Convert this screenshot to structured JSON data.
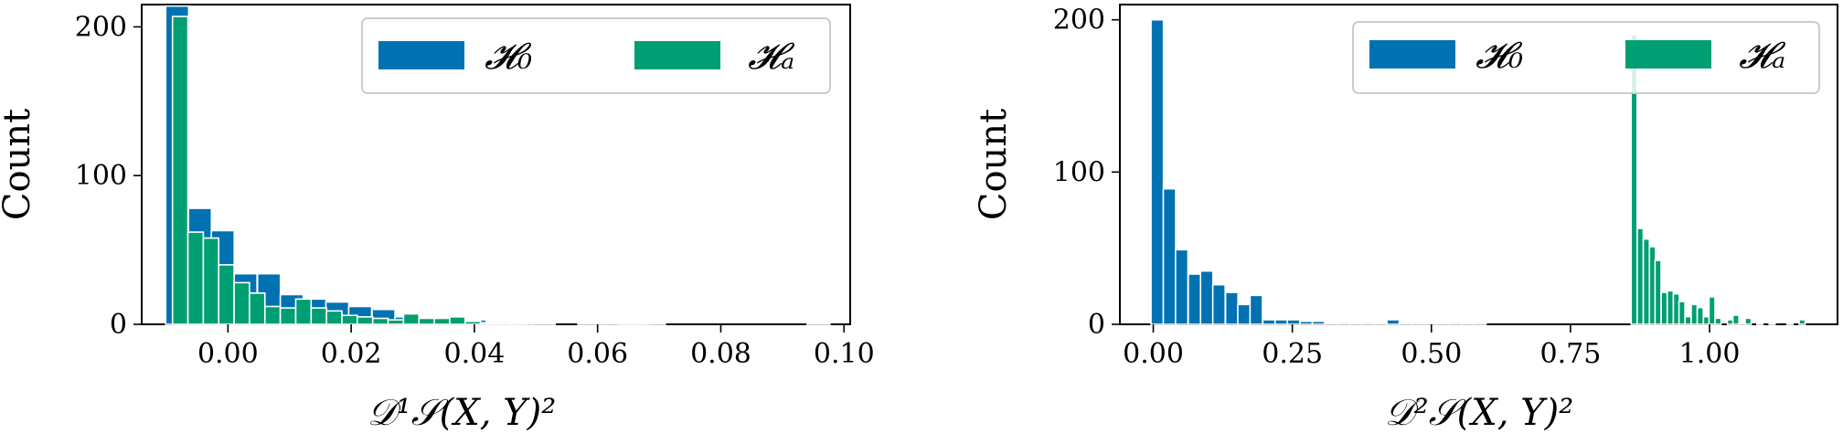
{
  "colors": {
    "h0": "#0072B2",
    "hA": "#009E73",
    "bar_edge": "#ffffff"
  },
  "chart_data": [
    {
      "type": "bar",
      "histogram": true,
      "xlabel": "𝒟¹𝒮(X, Y)²",
      "ylabel": "Count",
      "xlim": [
        -0.014,
        0.101
      ],
      "ylim": [
        0,
        215
      ],
      "xticks": [
        0.0,
        0.02,
        0.04,
        0.06,
        0.08,
        0.1
      ],
      "xtick_labels": [
        "0.00",
        "0.02",
        "0.04",
        "0.06",
        "0.08",
        "0.10"
      ],
      "yticks": [
        0,
        100,
        200
      ],
      "ytick_labels": [
        "0",
        "100",
        "200"
      ],
      "legend": {
        "position": "top-right",
        "entries": [
          "𝓗₀",
          "𝓗ₐ"
        ]
      },
      "series": [
        {
          "name": "𝓗₀",
          "bin_width": 0.00372,
          "bin_starts": [
            -0.0101,
            -0.0064,
            -0.0027,
            0.001,
            0.0048,
            0.0085,
            0.0122,
            0.0159,
            0.0196,
            0.0234,
            0.0271,
            0.0308,
            0.0345,
            0.0382,
            0.042,
            0.0457,
            0.0494,
            0.0531,
            0.0568,
            0.0606,
            0.0643,
            0.068,
            0.0717,
            0.0754,
            0.0791,
            0.0829,
            0.0866,
            0.0903,
            0.094
          ],
          "values": [
            214,
            78,
            63,
            34,
            34,
            20,
            17,
            15,
            12,
            10,
            5,
            3,
            4,
            3,
            2,
            1,
            1,
            0,
            1,
            1,
            1,
            0,
            0,
            0,
            0,
            0,
            0,
            0,
            1
          ]
        },
        {
          "name": "𝓗ₐ",
          "bin_width": 0.0025,
          "bin_starts": [
            -0.009,
            -0.0065,
            -0.004,
            -0.0015,
            0.001,
            0.0035,
            0.006,
            0.0085,
            0.011,
            0.0135,
            0.016,
            0.0185,
            0.021,
            0.0235,
            0.026,
            0.0285,
            0.031,
            0.0335,
            0.036,
            0.0385,
            0.041,
            0.0435,
            0.046,
            0.0635,
            0.066,
            0.0685
          ],
          "values": [
            207,
            62,
            58,
            40,
            28,
            21,
            12,
            11,
            17,
            11,
            9,
            6,
            5,
            4,
            3,
            7,
            4,
            4,
            5,
            2,
            1,
            1,
            1,
            1,
            1,
            1
          ]
        }
      ]
    },
    {
      "type": "bar",
      "histogram": true,
      "xlabel": "𝒟²𝒮(X, Y)²",
      "ylabel": "Count",
      "xlim": [
        -0.06,
        1.23
      ],
      "ylim": [
        0,
        210
      ],
      "xticks": [
        0.0,
        0.25,
        0.5,
        0.75,
        1.0
      ],
      "xtick_labels": [
        "0.00",
        "0.25",
        "0.50",
        "0.75",
        "1.00"
      ],
      "yticks": [
        0,
        100,
        200
      ],
      "ytick_labels": [
        "0",
        "100",
        "200"
      ],
      "legend": {
        "position": "top-right",
        "entries": [
          "𝓗₀",
          "𝓗ₐ"
        ]
      },
      "series": [
        {
          "name": "𝓗₀",
          "bin_width": 0.0223,
          "bin_starts": [
            -0.004,
            0.018,
            0.04,
            0.063,
            0.085,
            0.107,
            0.13,
            0.152,
            0.174,
            0.197,
            0.219,
            0.241,
            0.264,
            0.286,
            0.308,
            0.331,
            0.353,
            0.375,
            0.398,
            0.42,
            0.442,
            0.465,
            0.487,
            0.509,
            0.532,
            0.554,
            0.576
          ],
          "values": [
            200,
            89,
            49,
            33,
            35,
            26,
            21,
            13,
            19,
            3,
            3,
            3,
            2,
            2,
            1,
            1,
            1,
            1,
            1,
            3,
            1,
            1,
            1,
            1,
            1,
            1,
            1
          ]
        },
        {
          "name": "𝓗ₐ",
          "bin_width": 0.0108,
          "bin_starts": [
            0.859,
            0.87,
            0.881,
            0.892,
            0.902,
            0.913,
            0.924,
            0.935,
            0.945,
            0.956,
            0.967,
            0.978,
            0.989,
            0.999,
            1.01,
            1.021,
            1.032,
            1.042,
            1.053,
            1.064,
            1.075,
            1.085,
            1.096,
            1.107,
            1.118,
            1.129,
            1.139,
            1.15,
            1.161
          ],
          "values": [
            190,
            63,
            56,
            51,
            42,
            21,
            22,
            20,
            15,
            5,
            13,
            11,
            5,
            18,
            4,
            0,
            3,
            6,
            1,
            4,
            0,
            1,
            0,
            1,
            0,
            0,
            1,
            0,
            3
          ]
        }
      ]
    }
  ]
}
